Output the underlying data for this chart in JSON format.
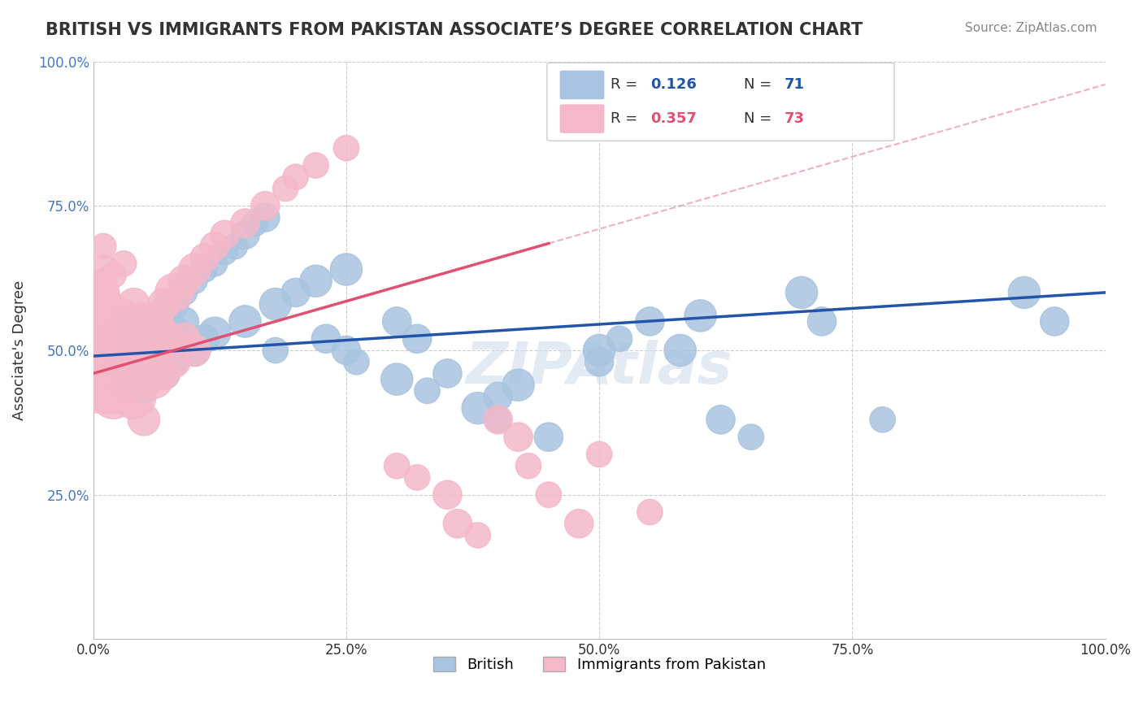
{
  "title": "BRITISH VS IMMIGRANTS FROM PAKISTAN ASSOCIATE’S DEGREE CORRELATION CHART",
  "source": "Source: ZipAtlas.com",
  "ylabel": "Associate's Degree",
  "xlim": [
    0,
    1
  ],
  "ylim": [
    0,
    1
  ],
  "xticks": [
    0.0,
    0.25,
    0.5,
    0.75,
    1.0
  ],
  "yticks": [
    0.25,
    0.5,
    0.75,
    1.0
  ],
  "xtick_labels": [
    "0.0%",
    "25.0%",
    "50.0%",
    "75.0%",
    "100.0%"
  ],
  "ytick_labels": [
    "25.0%",
    "50.0%",
    "75.0%",
    "100.0%"
  ],
  "british_color": "#a8c4e0",
  "pakistan_color": "#f4b8c8",
  "british_line_color": "#2255aa",
  "pakistan_line_color": "#e05070",
  "r_british": 0.126,
  "n_british": 71,
  "r_pakistan": 0.357,
  "n_pakistan": 73,
  "watermark": "ZIPAtlas",
  "british_x": [
    0.02,
    0.02,
    0.03,
    0.03,
    0.03,
    0.03,
    0.03,
    0.03,
    0.04,
    0.04,
    0.04,
    0.04,
    0.04,
    0.05,
    0.05,
    0.05,
    0.05,
    0.06,
    0.06,
    0.06,
    0.07,
    0.07,
    0.07,
    0.08,
    0.08,
    0.08,
    0.09,
    0.09,
    0.1,
    0.1,
    0.11,
    0.11,
    0.12,
    0.12,
    0.13,
    0.14,
    0.15,
    0.15,
    0.16,
    0.17,
    0.18,
    0.18,
    0.2,
    0.22,
    0.23,
    0.25,
    0.25,
    0.26,
    0.3,
    0.3,
    0.32,
    0.33,
    0.35,
    0.38,
    0.4,
    0.4,
    0.42,
    0.45,
    0.5,
    0.5,
    0.52,
    0.55,
    0.58,
    0.6,
    0.62,
    0.65,
    0.7,
    0.72,
    0.78,
    0.92,
    0.95
  ],
  "british_y": [
    0.5,
    0.52,
    0.48,
    0.5,
    0.53,
    0.55,
    0.47,
    0.44,
    0.51,
    0.49,
    0.52,
    0.46,
    0.44,
    0.54,
    0.5,
    0.48,
    0.43,
    0.56,
    0.52,
    0.46,
    0.57,
    0.53,
    0.46,
    0.58,
    0.54,
    0.48,
    0.6,
    0.55,
    0.62,
    0.5,
    0.64,
    0.52,
    0.65,
    0.53,
    0.67,
    0.68,
    0.7,
    0.55,
    0.72,
    0.73,
    0.58,
    0.5,
    0.6,
    0.62,
    0.52,
    0.64,
    0.5,
    0.48,
    0.55,
    0.45,
    0.52,
    0.43,
    0.46,
    0.4,
    0.42,
    0.38,
    0.44,
    0.35,
    0.5,
    0.48,
    0.52,
    0.55,
    0.5,
    0.56,
    0.38,
    0.35,
    0.6,
    0.55,
    0.38,
    0.6,
    0.55
  ],
  "british_sizes": [
    8,
    8,
    8,
    9,
    8,
    8,
    8,
    8,
    9,
    8,
    8,
    9,
    10,
    8,
    8,
    9,
    8,
    8,
    9,
    8,
    9,
    8,
    10,
    9,
    8,
    9,
    8,
    9,
    8,
    10,
    8,
    9,
    8,
    10,
    8,
    8,
    9,
    10,
    8,
    9,
    10,
    8,
    9,
    10,
    9,
    10,
    9,
    8,
    9,
    10,
    9,
    8,
    9,
    10,
    9,
    8,
    10,
    9,
    10,
    9,
    8,
    9,
    10,
    10,
    9,
    8,
    10,
    9,
    8,
    10,
    9
  ],
  "pakistan_x": [
    0.01,
    0.01,
    0.01,
    0.01,
    0.01,
    0.01,
    0.01,
    0.01,
    0.01,
    0.01,
    0.01,
    0.01,
    0.01,
    0.01,
    0.02,
    0.02,
    0.02,
    0.02,
    0.02,
    0.02,
    0.02,
    0.02,
    0.02,
    0.03,
    0.03,
    0.03,
    0.03,
    0.03,
    0.03,
    0.03,
    0.04,
    0.04,
    0.04,
    0.04,
    0.04,
    0.04,
    0.05,
    0.05,
    0.05,
    0.05,
    0.06,
    0.06,
    0.06,
    0.07,
    0.07,
    0.07,
    0.08,
    0.08,
    0.09,
    0.09,
    0.1,
    0.1,
    0.11,
    0.12,
    0.13,
    0.15,
    0.17,
    0.19,
    0.2,
    0.22,
    0.25,
    0.3,
    0.32,
    0.35,
    0.36,
    0.38,
    0.4,
    0.42,
    0.43,
    0.45,
    0.48,
    0.5,
    0.55
  ],
  "pakistan_y": [
    0.54,
    0.52,
    0.5,
    0.48,
    0.47,
    0.53,
    0.56,
    0.44,
    0.46,
    0.58,
    0.6,
    0.62,
    0.64,
    0.68,
    0.5,
    0.52,
    0.48,
    0.55,
    0.44,
    0.57,
    0.46,
    0.63,
    0.42,
    0.54,
    0.52,
    0.5,
    0.56,
    0.48,
    0.44,
    0.65,
    0.52,
    0.54,
    0.46,
    0.5,
    0.58,
    0.42,
    0.55,
    0.5,
    0.45,
    0.38,
    0.55,
    0.5,
    0.45,
    0.58,
    0.52,
    0.46,
    0.6,
    0.48,
    0.62,
    0.52,
    0.64,
    0.5,
    0.66,
    0.68,
    0.7,
    0.72,
    0.75,
    0.78,
    0.8,
    0.82,
    0.85,
    0.3,
    0.28,
    0.25,
    0.2,
    0.18,
    0.38,
    0.35,
    0.3,
    0.25,
    0.2,
    0.32,
    0.22
  ],
  "pakistan_sizes": [
    22,
    18,
    15,
    14,
    16,
    12,
    10,
    18,
    14,
    12,
    10,
    8,
    9,
    8,
    20,
    16,
    14,
    12,
    18,
    10,
    16,
    8,
    14,
    16,
    14,
    12,
    10,
    12,
    14,
    8,
    12,
    10,
    14,
    12,
    10,
    14,
    12,
    10,
    12,
    10,
    12,
    10,
    12,
    10,
    12,
    10,
    12,
    10,
    10,
    10,
    10,
    10,
    9,
    9,
    9,
    9,
    9,
    8,
    8,
    8,
    8,
    8,
    8,
    9,
    9,
    8,
    9,
    9,
    8,
    8,
    9,
    8,
    8
  ]
}
